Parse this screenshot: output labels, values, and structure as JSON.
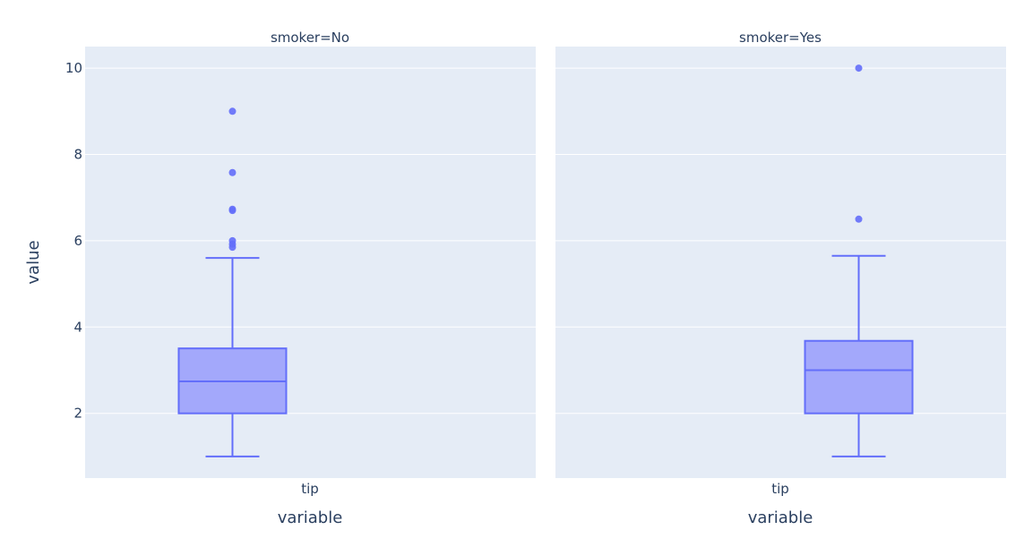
{
  "chart_data": {
    "type": "box",
    "ylabel": "value",
    "ylim": [
      0.5,
      10.5
    ],
    "yticks": [
      2,
      4,
      6,
      8,
      10
    ],
    "grid": true,
    "colors": {
      "plot_bg": "#e5ecf6",
      "grid": "#ffffff",
      "box_line": "#636efa",
      "box_fill": "#a3a8fb",
      "text": "#2a3f5f"
    },
    "facets": [
      {
        "title": "smoker=No",
        "xlabel": "variable",
        "category": "tip",
        "box": {
          "min": 1.0,
          "q1": 2.0,
          "median": 2.74,
          "q3": 3.505,
          "max": 5.6
        },
        "outliers": [
          9.0,
          7.58,
          6.73,
          6.7,
          6.0,
          5.92,
          5.85
        ]
      },
      {
        "title": "smoker=Yes",
        "xlabel": "variable",
        "category": "tip",
        "box": {
          "min": 1.0,
          "q1": 2.0,
          "median": 3.0,
          "q3": 3.68,
          "max": 5.65
        },
        "outliers": [
          10.0,
          6.5
        ]
      }
    ]
  }
}
